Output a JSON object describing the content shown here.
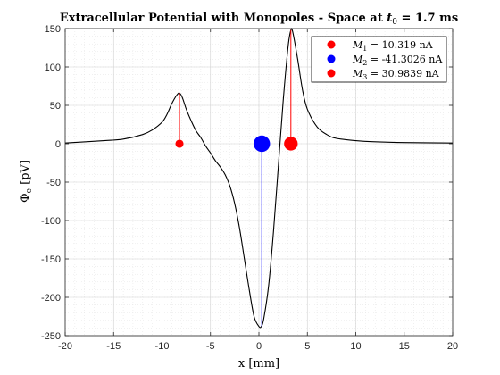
{
  "chart_data": {
    "type": "line",
    "title": {
      "prefix": "Extracellular Potential with Monopoles - Space at ",
      "var": "t",
      "sub": "0",
      "suffix": " = 1.7 ms"
    },
    "xlabel": {
      "sym": "x",
      "unit": "[mm]"
    },
    "ylabel": {
      "sym": "Φ",
      "sub": "e",
      "unit": "[pV]"
    },
    "xlim": [
      -20,
      20
    ],
    "ylim": [
      -250,
      150
    ],
    "xticks": [
      -20,
      -15,
      -10,
      -5,
      0,
      5,
      10,
      15,
      20
    ],
    "yticks": [
      -250,
      -200,
      -150,
      -100,
      -50,
      0,
      50,
      100,
      150
    ],
    "xtick_labels": [
      "-20",
      "-15",
      "-10",
      "-5",
      "0",
      "5",
      "10",
      "15",
      "20"
    ],
    "ytick_labels": [
      "-250",
      "-200",
      "-150",
      "-100",
      "-50",
      "0",
      "50",
      "100",
      "150"
    ],
    "grid": true,
    "minor_grid": true,
    "legend_position": "top-right",
    "potential_curve": {
      "x": [
        -20,
        -16,
        -14,
        -12,
        -11,
        -10,
        -9.5,
        -9,
        -8.5,
        -8.2,
        -7.9,
        -7.5,
        -7,
        -6.5,
        -6,
        -5.5,
        -5,
        -4.5,
        -4,
        -3.5,
        -3,
        -2.5,
        -2,
        -1.5,
        -1,
        -0.5,
        0,
        0.25,
        0.5,
        1,
        1.5,
        2,
        2.5,
        3,
        3.3,
        3.5,
        4,
        4.5,
        5,
        6,
        7,
        8,
        10,
        12,
        15,
        20
      ],
      "y": [
        1,
        4,
        6,
        12,
        18,
        28,
        38,
        52,
        63,
        66,
        60,
        45,
        30,
        17,
        8,
        -3,
        -12,
        -22,
        -30,
        -40,
        -55,
        -78,
        -110,
        -150,
        -190,
        -225,
        -238,
        -238,
        -228,
        -185,
        -115,
        -30,
        55,
        125,
        148,
        145,
        110,
        70,
        45,
        22,
        12,
        7,
        4,
        2.5,
        1.5,
        1
      ]
    },
    "monopoles": [
      {
        "label": "M",
        "sub": "1",
        "value": "10.319 nA",
        "x": -8.2,
        "y": 0,
        "peak": 66,
        "color": "#ff0000",
        "size": 10.319
      },
      {
        "label": "M",
        "sub": "2",
        "value": "-41.3026 nA",
        "x": 0.3,
        "y": 0,
        "peak": -238,
        "color": "#0000ff",
        "size": 41.3026
      },
      {
        "label": "M",
        "sub": "3",
        "value": "30.9839 nA",
        "x": 3.3,
        "y": 0,
        "peak": 148,
        "color": "#ff0000",
        "size": 30.9839
      }
    ]
  }
}
